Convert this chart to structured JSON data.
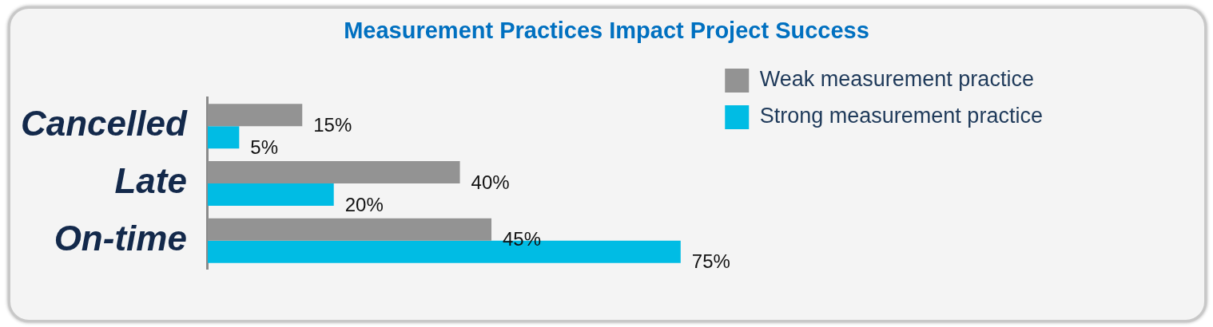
{
  "chart_data": {
    "type": "bar",
    "orientation": "horizontal",
    "title": "Measurement Practices Impact Project Success",
    "categories": [
      "Cancelled",
      "Late",
      "On-time"
    ],
    "series": [
      {
        "name": "Weak measurement practice",
        "color": "#939393",
        "values": [
          15,
          40,
          45
        ],
        "value_labels": [
          "15%",
          "40%",
          "45%"
        ]
      },
      {
        "name": "Strong measurement practice",
        "color": "#00bce4",
        "values": [
          5,
          20,
          75
        ],
        "value_labels": [
          "5%",
          "20%",
          "75%"
        ]
      }
    ],
    "legend": "top right"
  }
}
